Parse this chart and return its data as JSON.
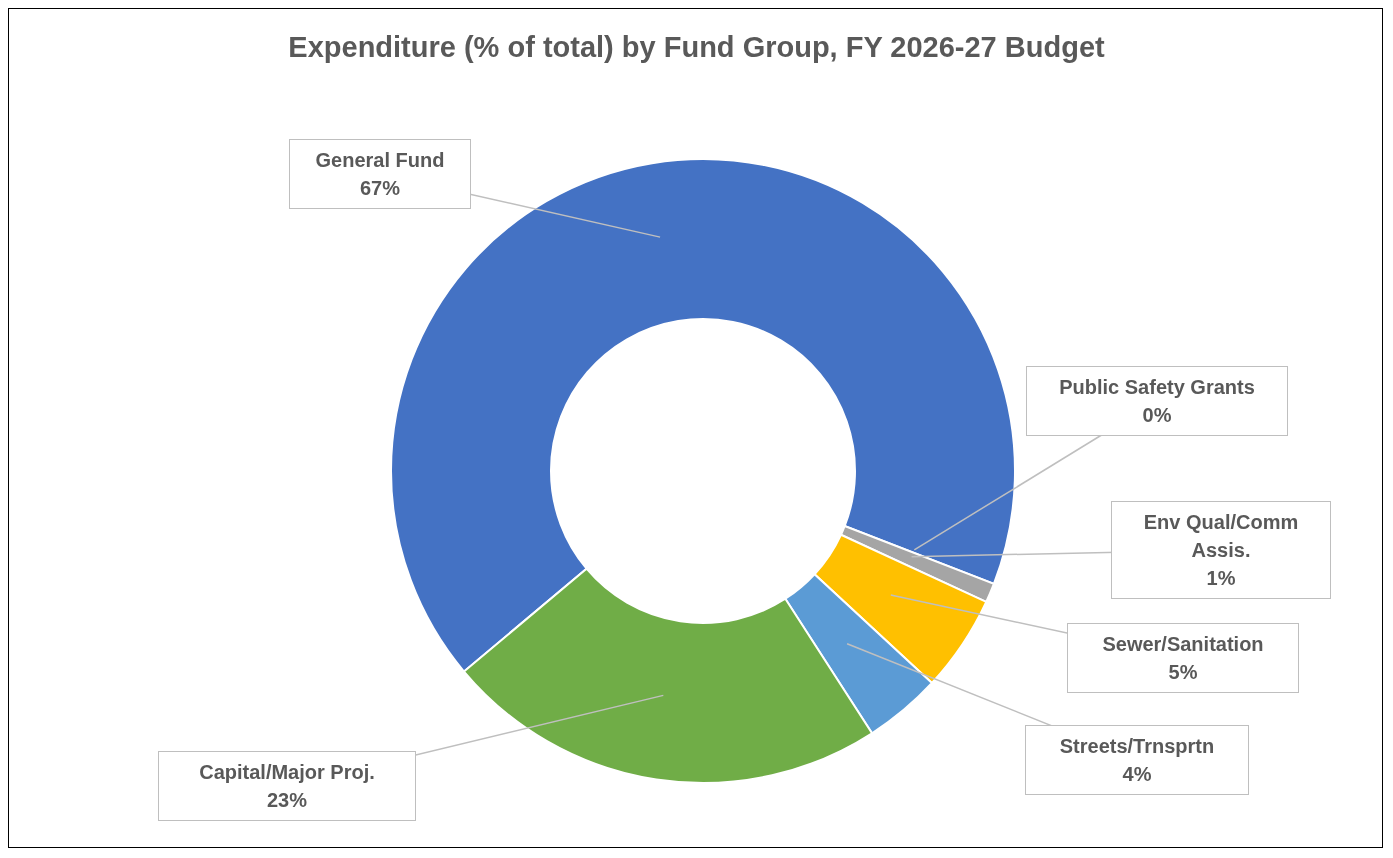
{
  "chart_data": {
    "type": "donut",
    "title": "Expenditure (% of total) by Fund Group, FY 2026-27 Budget",
    "categories": [
      "General Fund",
      "Public Safety Grants",
      "Env Qual/Comm Assis.",
      "Sewer/Sanitation",
      "Streets/Trnsprtn",
      "Capital/Major Proj."
    ],
    "values": [
      67,
      0,
      1,
      5,
      4,
      23
    ],
    "colors": [
      "#4472c4",
      "#a5a5a5",
      "#a5a5a5",
      "#ffc000",
      "#5b9bd5",
      "#70ad47"
    ],
    "value_labels": [
      "67%",
      "0%",
      "1%",
      "5%",
      "4%",
      "23%"
    ],
    "legend": false
  }
}
